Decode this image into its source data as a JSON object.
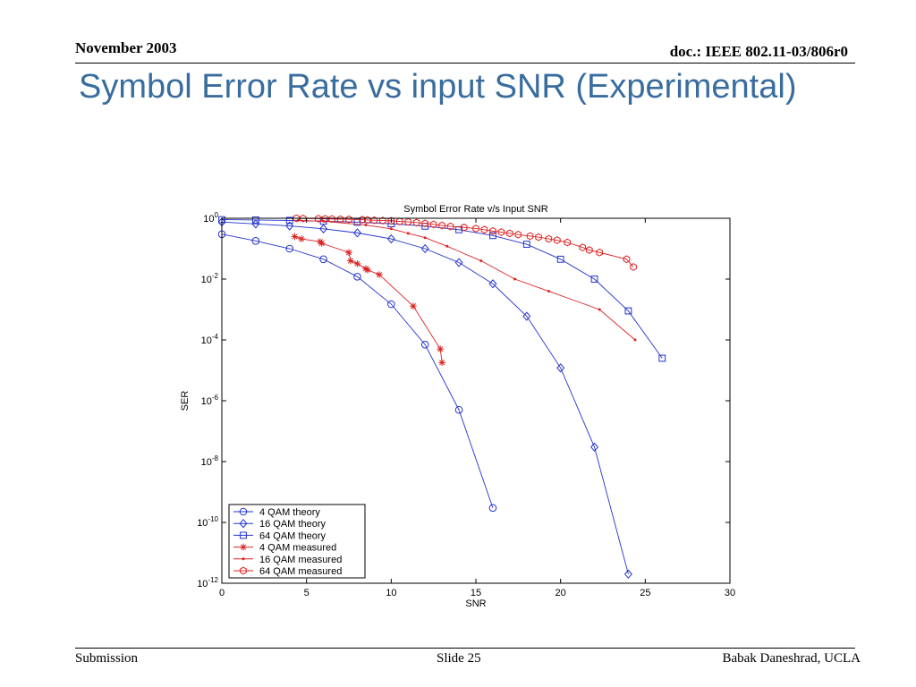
{
  "header": {
    "date": "November 2003",
    "doc": "doc.: IEEE 802.11-03/806r0"
  },
  "slide_title": "Symbol Error Rate vs input SNR (Experimental)",
  "footer": {
    "left": "Submission",
    "center": "Slide 25",
    "right": "Babak Daneshrad, UCLA"
  },
  "colors": {
    "title": "#3a6d9f",
    "theory": "#2233cc",
    "measured": "#dd2222"
  },
  "chart_data": {
    "type": "line",
    "title": "Symbol Error Rate v/s Input SNR",
    "xlabel": "SNR",
    "ylabel": "SER",
    "xlim": [
      0,
      30
    ],
    "ylim_log10": [
      -12,
      0
    ],
    "y_scale": "log",
    "x_ticks": [
      0,
      5,
      10,
      15,
      20,
      25,
      30
    ],
    "y_tick_exponents": [
      0,
      -2,
      -4,
      -6,
      -8,
      -10,
      -12
    ],
    "y_tick_base": "10",
    "grid": false,
    "legend_position": "bottom-left",
    "series": [
      {
        "name": "4 QAM theory",
        "color": "#2233cc",
        "marker": "circle",
        "x": [
          0,
          2,
          4,
          6,
          8,
          10,
          12,
          14,
          16
        ],
        "y": [
          0.3,
          0.18,
          0.1,
          0.045,
          0.012,
          0.0015,
          7e-05,
          5e-07,
          3e-10
        ]
      },
      {
        "name": "16 QAM theory",
        "color": "#2233cc",
        "marker": "diamond",
        "x": [
          0,
          2,
          4,
          6,
          8,
          10,
          12,
          14,
          16,
          18,
          20,
          22,
          24
        ],
        "y": [
          0.75,
          0.65,
          0.56,
          0.45,
          0.33,
          0.21,
          0.1,
          0.035,
          0.007,
          0.0006,
          1.2e-05,
          3e-08,
          2e-12
        ]
      },
      {
        "name": "64 QAM theory",
        "color": "#2233cc",
        "marker": "square",
        "x": [
          0,
          2,
          4,
          6,
          8,
          10,
          12,
          14,
          16,
          18,
          20,
          22,
          24,
          26
        ],
        "y": [
          0.9,
          0.88,
          0.85,
          0.8,
          0.74,
          0.66,
          0.55,
          0.42,
          0.27,
          0.14,
          0.045,
          0.01,
          0.0009,
          2.5e-05
        ]
      },
      {
        "name": "4 QAM measured",
        "color": "#dd2222",
        "marker": "star",
        "x": [
          4.3,
          4.7,
          5.8,
          5.9,
          7.5,
          7.6,
          8.0,
          8.5,
          8.6,
          9.3,
          11.3,
          12.9,
          13.0
        ],
        "y": [
          0.25,
          0.21,
          0.17,
          0.15,
          0.075,
          0.04,
          0.032,
          0.022,
          0.02,
          0.014,
          0.0013,
          5e-05,
          1.8e-05
        ]
      },
      {
        "name": "16 QAM measured",
        "color": "#dd2222",
        "marker": "dot",
        "x": [
          4.5,
          6.0,
          8.5,
          10.0,
          11.0,
          12.0,
          13.3,
          15.3,
          17.3,
          19.3,
          22.3,
          24.4
        ],
        "y": [
          0.85,
          0.8,
          0.6,
          0.45,
          0.32,
          0.23,
          0.12,
          0.04,
          0.01,
          0.004,
          0.001,
          0.0001
        ]
      },
      {
        "name": "64 QAM measured",
        "color": "#dd2222",
        "marker": "hexagon",
        "x": [
          4.4,
          4.8,
          5.7,
          6.1,
          6.5,
          7.0,
          7.5,
          8.3,
          8.6,
          9.0,
          9.5,
          10.0,
          10.5,
          11.0,
          11.5,
          12.0,
          12.5,
          13.0,
          13.5,
          14.3,
          15.0,
          15.5,
          16.0,
          16.5,
          17.0,
          17.5,
          18.2,
          18.7,
          19.3,
          19.8,
          20.4,
          21.3,
          21.7,
          22.3,
          23.9,
          24.3
        ],
        "y": [
          1.0,
          0.98,
          0.97,
          0.96,
          0.95,
          0.93,
          0.92,
          0.9,
          0.88,
          0.86,
          0.84,
          0.82,
          0.79,
          0.76,
          0.72,
          0.68,
          0.63,
          0.58,
          0.54,
          0.5,
          0.46,
          0.42,
          0.38,
          0.35,
          0.32,
          0.29,
          0.26,
          0.24,
          0.21,
          0.19,
          0.16,
          0.11,
          0.09,
          0.075,
          0.045,
          0.025
        ]
      }
    ]
  }
}
